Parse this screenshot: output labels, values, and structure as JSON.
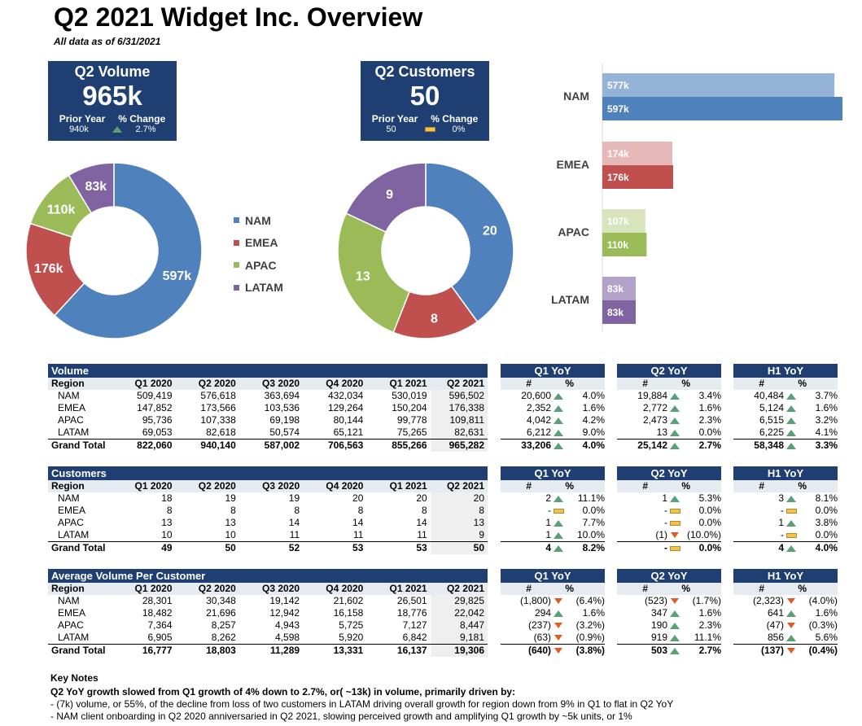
{
  "header": {
    "title": "Q2 2021 Widget Inc. Overview",
    "subtitle": "All data as of 6/31/2021"
  },
  "kpis": {
    "volume": {
      "title": "Q2 Volume",
      "value": "965k",
      "prior_label": "Prior Year",
      "change_label": "% Change",
      "prior_value": "940k",
      "change_value": "2.7%",
      "indicator": "up"
    },
    "customers": {
      "title": "Q2 Customers",
      "value": "50",
      "prior_label": "Prior Year",
      "change_label": "% Change",
      "prior_value": "50",
      "change_value": "0%",
      "indicator": "flat"
    }
  },
  "colors": {
    "nam": "#4f81bd",
    "emea": "#c0504d",
    "apac": "#9bbb59",
    "latam": "#8064a2",
    "nam_light": "#95b3d7",
    "emea_light": "#e6b9b8",
    "apac_light": "#d7e4bd",
    "latam_light": "#b3a2c7",
    "header_blue": "#1f3f73"
  },
  "legend": [
    "NAM",
    "EMEA",
    "APAC",
    "LATAM"
  ],
  "chart_data": [
    {
      "type": "pie",
      "categories": [
        "NAM",
        "EMEA",
        "APAC",
        "LATAM"
      ],
      "values": [
        597,
        176,
        110,
        83
      ],
      "labels": [
        "597k",
        "176k",
        "110k",
        "83k"
      ]
    },
    {
      "type": "pie",
      "categories": [
        "NAM",
        "EMEA",
        "APAC",
        "LATAM"
      ],
      "values": [
        20,
        8,
        13,
        9
      ],
      "labels": [
        "20",
        "8",
        "13",
        "9"
      ]
    },
    {
      "type": "bar",
      "categories": [
        "NAM",
        "EMEA",
        "APAC",
        "LATAM"
      ],
      "series": [
        {
          "values": [
            577,
            174,
            107,
            83
          ],
          "labels": [
            "577k",
            "174k",
            "107k",
            "83k"
          ]
        },
        {
          "values": [
            597,
            176,
            110,
            83
          ],
          "labels": [
            "597k",
            "176k",
            "110k",
            "83k"
          ]
        }
      ]
    }
  ],
  "tables": [
    {
      "title": "Volume",
      "columns": [
        "Region",
        "Q1 2020",
        "Q2 2020",
        "Q3 2020",
        "Q4 2020",
        "Q1 2021",
        "Q2 2021"
      ],
      "rows": [
        [
          "NAM",
          "509,419",
          "576,618",
          "363,694",
          "432,034",
          "530,019",
          "596,502"
        ],
        [
          "EMEA",
          "147,852",
          "173,566",
          "103,536",
          "129,264",
          "150,204",
          "176,338"
        ],
        [
          "APAC",
          "95,736",
          "107,338",
          "69,198",
          "80,144",
          "99,778",
          "109,811"
        ],
        [
          "LATAM",
          "69,053",
          "82,618",
          "50,574",
          "65,121",
          "75,265",
          "82,631"
        ]
      ],
      "total": [
        "Grand Total",
        "822,060",
        "940,140",
        "587,002",
        "706,563",
        "855,266",
        "965,282"
      ],
      "yoy": [
        {
          "title": "Q1 YoY",
          "rows": [
            [
              "20,600",
              "up",
              "4.0%"
            ],
            [
              "2,352",
              "up",
              "1.6%"
            ],
            [
              "4,042",
              "up",
              "4.2%"
            ],
            [
              "6,212",
              "up",
              "9.0%"
            ]
          ],
          "total": [
            "33,206",
            "up",
            "4.0%"
          ]
        },
        {
          "title": "Q2 YoY",
          "rows": [
            [
              "19,884",
              "up",
              "3.4%"
            ],
            [
              "2,772",
              "up",
              "1.6%"
            ],
            [
              "2,473",
              "up",
              "2.3%"
            ],
            [
              "13",
              "up",
              "0.0%"
            ]
          ],
          "total": [
            "25,142",
            "up",
            "2.7%"
          ]
        },
        {
          "title": "H1 YoY",
          "rows": [
            [
              "40,484",
              "up",
              "3.7%"
            ],
            [
              "5,124",
              "up",
              "1.6%"
            ],
            [
              "6,515",
              "up",
              "3.2%"
            ],
            [
              "6,225",
              "up",
              "4.1%"
            ]
          ],
          "total": [
            "58,348",
            "up",
            "3.3%"
          ]
        }
      ]
    },
    {
      "title": "Customers",
      "columns": [
        "Region",
        "Q1 2020",
        "Q2 2020",
        "Q3 2020",
        "Q4 2020",
        "Q1 2021",
        "Q2 2021"
      ],
      "rows": [
        [
          "NAM",
          "18",
          "19",
          "19",
          "20",
          "20",
          "20"
        ],
        [
          "EMEA",
          "8",
          "8",
          "8",
          "8",
          "8",
          "8"
        ],
        [
          "APAC",
          "13",
          "13",
          "14",
          "14",
          "14",
          "13"
        ],
        [
          "LATAM",
          "10",
          "10",
          "11",
          "11",
          "11",
          "9"
        ]
      ],
      "total": [
        "Grand Total",
        "49",
        "50",
        "52",
        "53",
        "53",
        "50"
      ],
      "yoy": [
        {
          "title": "Q1 YoY",
          "rows": [
            [
              "2",
              "up",
              "11.1%"
            ],
            [
              "-",
              "flat",
              "0.0%"
            ],
            [
              "1",
              "up",
              "7.7%"
            ],
            [
              "1",
              "up",
              "10.0%"
            ]
          ],
          "total": [
            "4",
            "up",
            "8.2%"
          ]
        },
        {
          "title": "Q2 YoY",
          "rows": [
            [
              "1",
              "up",
              "5.3%"
            ],
            [
              "-",
              "flat",
              "0.0%"
            ],
            [
              "-",
              "flat",
              "0.0%"
            ],
            [
              "(1)",
              "down",
              "(10.0%)"
            ]
          ],
          "total": [
            "-",
            "flat",
            "0.0%"
          ]
        },
        {
          "title": "H1 YoY",
          "rows": [
            [
              "3",
              "up",
              "8.1%"
            ],
            [
              "-",
              "flat",
              "0.0%"
            ],
            [
              "1",
              "up",
              "3.8%"
            ],
            [
              "-",
              "flat",
              "0.0%"
            ]
          ],
          "total": [
            "4",
            "up",
            "4.0%"
          ]
        }
      ]
    },
    {
      "title": "Average Volume Per Customer",
      "columns": [
        "Region",
        "Q1 2020",
        "Q2 2020",
        "Q3 2020",
        "Q4 2020",
        "Q1 2021",
        "Q2 2021"
      ],
      "rows": [
        [
          "NAM",
          "28,301",
          "30,348",
          "19,142",
          "21,602",
          "26,501",
          "29,825"
        ],
        [
          "EMEA",
          "18,482",
          "21,696",
          "12,942",
          "16,158",
          "18,776",
          "22,042"
        ],
        [
          "APAC",
          "7,364",
          "8,257",
          "4,943",
          "5,725",
          "7,127",
          "8,447"
        ],
        [
          "LATAM",
          "6,905",
          "8,262",
          "4,598",
          "5,920",
          "6,842",
          "9,181"
        ]
      ],
      "total": [
        "Grand Total",
        "16,777",
        "18,803",
        "11,289",
        "13,331",
        "16,137",
        "19,306"
      ],
      "yoy": [
        {
          "title": "Q1 YoY",
          "rows": [
            [
              "(1,800)",
              "down",
              "(6.4%)"
            ],
            [
              "294",
              "up",
              "1.6%"
            ],
            [
              "(237)",
              "down",
              "(3.2%)"
            ],
            [
              "(63)",
              "down",
              "(0.9%)"
            ]
          ],
          "total": [
            "(640)",
            "down",
            "(3.8%)"
          ]
        },
        {
          "title": "Q2 YoY",
          "rows": [
            [
              "(523)",
              "down",
              "(1.7%)"
            ],
            [
              "347",
              "up",
              "1.6%"
            ],
            [
              "190",
              "up",
              "2.3%"
            ],
            [
              "919",
              "up",
              "11.1%"
            ]
          ],
          "total": [
            "503",
            "up",
            "2.7%"
          ]
        },
        {
          "title": "H1 YoY",
          "rows": [
            [
              "(2,323)",
              "down",
              "(4.0%)"
            ],
            [
              "641",
              "up",
              "1.6%"
            ],
            [
              "(47)",
              "down",
              "(0.3%)"
            ],
            [
              "856",
              "up",
              "5.6%"
            ]
          ],
          "total": [
            "(137)",
            "down",
            "(0.4%)"
          ]
        }
      ]
    }
  ],
  "yoy_subheaders": [
    "#",
    "%"
  ],
  "notes": {
    "title": "Key Notes",
    "lines": [
      "Q2 YoY growth slowed from Q1 growth of 4% down to 2.7%, or( ~13k) in volume, primarily driven by:",
      "- (7k) volume, or 55%, of the decline from loss of two customers in LATAM driving overall growth for region down from 9% in Q1 to flat in Q2 YoY",
      "- NAM client onboarding in Q2 2020 anniversaried in Q2 2021, slowing perceived growth and amplifying Q1 growth by ~5k units, or 1%"
    ]
  }
}
